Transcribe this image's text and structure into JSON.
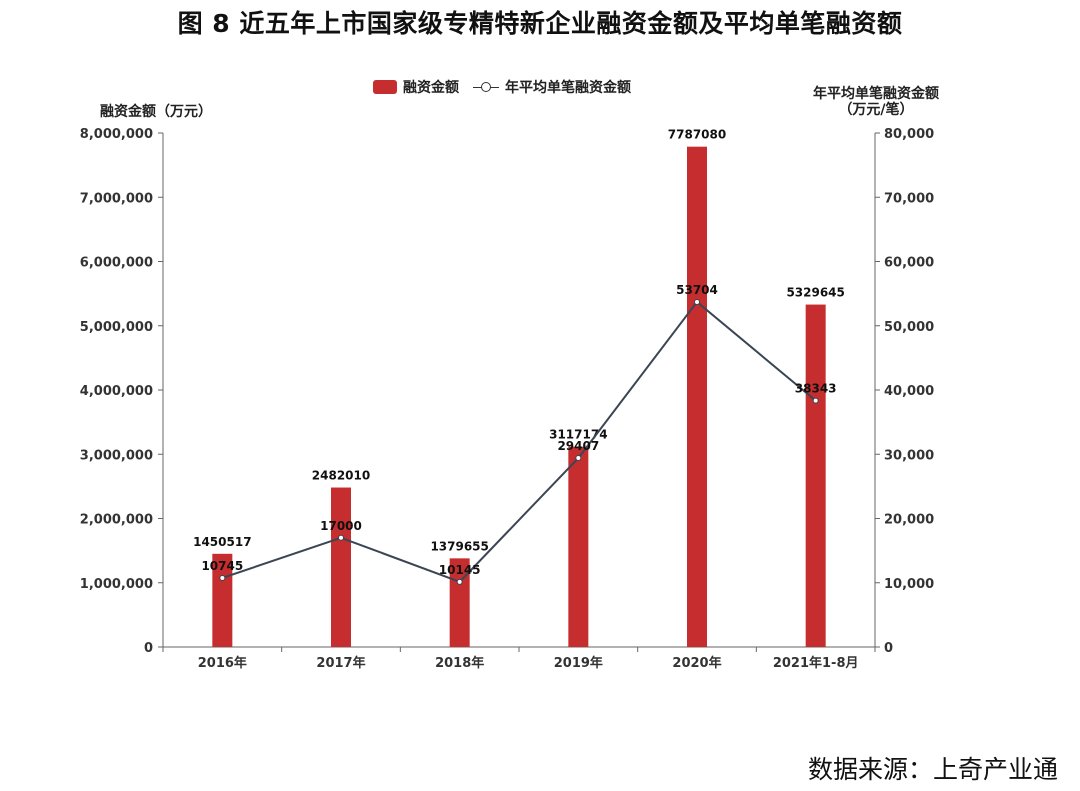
{
  "title": "图 8  近五年上市国家级专精特新企业融资金额及平均单笔融资额",
  "legend": {
    "bar_label": "融资金额",
    "line_label": "年平均单笔融资金额"
  },
  "axes": {
    "left_title": "融资金额（万元）",
    "right_title_line1": "年平均单笔融资金额",
    "right_title_line2": "（万元/笔）",
    "left_ticks": [
      "0",
      "1,000,000",
      "2,000,000",
      "3,000,000",
      "4,000,000",
      "5,000,000",
      "6,000,000",
      "7,000,000",
      "8,000,000"
    ],
    "right_ticks": [
      "0",
      "10,000",
      "20,000",
      "30,000",
      "40,000",
      "50,000",
      "60,000",
      "70,000",
      "80,000"
    ]
  },
  "source": "数据来源：上奇产业通",
  "colors": {
    "bar": "#c62d2e",
    "line": "#3b4654",
    "axis": "#666666"
  },
  "chart_data": {
    "type": "bar+line",
    "title": "图 8 近五年上市国家级专精特新企业融资金额及平均单笔融资额",
    "categories": [
      "2016年",
      "2017年",
      "2018年",
      "2019年",
      "2020年",
      "2021年1-8月"
    ],
    "series": [
      {
        "name": "融资金额",
        "type": "bar",
        "axis": "left",
        "values": [
          1450517,
          2482010,
          1379655,
          3117174,
          7787080,
          5329645
        ]
      },
      {
        "name": "年平均单笔融资金额",
        "type": "line",
        "axis": "right",
        "values": [
          10745,
          17000,
          10145,
          29407,
          53704,
          38343
        ]
      }
    ],
    "ylabel_left": "融资金额（万元）",
    "ylabel_right": "年平均单笔融资金额（万元/笔）",
    "ylim_left": [
      0,
      8000000
    ],
    "ylim_right": [
      0,
      80000
    ],
    "grid": false,
    "legend_position": "top"
  }
}
